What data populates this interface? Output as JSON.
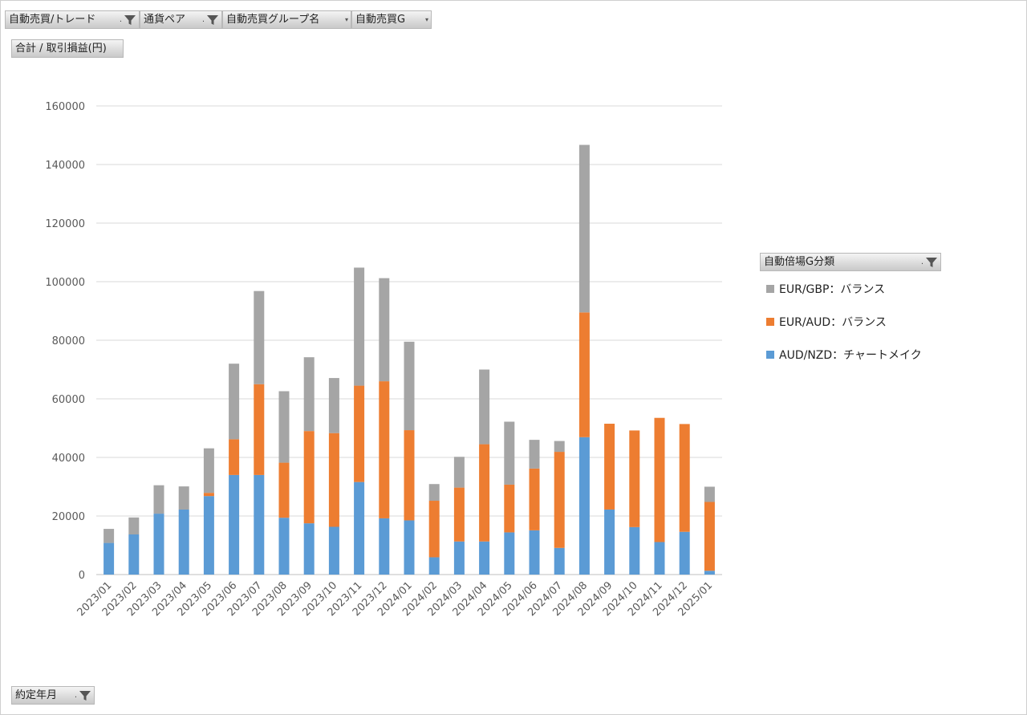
{
  "filters": {
    "top": [
      {
        "label": "自動売買/トレード",
        "marker": ".",
        "icon": "filter-icon"
      },
      {
        "label": "通貨ペア",
        "marker": ".",
        "icon": "filter-icon"
      },
      {
        "label": "自動売買グループ名",
        "marker": "",
        "icon": "dropdown-icon"
      },
      {
        "label": "自動売買G",
        "marker": "",
        "icon": "dropdown-icon"
      }
    ],
    "value_field": "合計 / 取引損益(円)",
    "axis_field": {
      "label": "約定年月",
      "marker": ".",
      "icon": "filter-icon"
    },
    "legend_field": {
      "label": "自動倍場G分類",
      "marker": ".",
      "icon": "filter-icon"
    }
  },
  "colors": {
    "gray": "#a5a5a5",
    "orange": "#ed7d31",
    "blue": "#5b9bd5"
  },
  "chart_data": {
    "type": "bar",
    "stacked": true,
    "title": "",
    "xlabel": "",
    "ylabel": "",
    "ylim": [
      0,
      160000
    ],
    "yticks": [
      "0",
      "20000",
      "40000",
      "60000",
      "80000",
      "100000",
      "120000",
      "140000",
      "160000"
    ],
    "grid": true,
    "legend_position": "right",
    "categories": [
      "2023/01",
      "2023/02",
      "2023/03",
      "2023/04",
      "2023/05",
      "2023/06",
      "2023/07",
      "2023/08",
      "2023/09",
      "2023/10",
      "2023/11",
      "2023/12",
      "2024/01",
      "2024/02",
      "2024/03",
      "2024/04",
      "2024/05",
      "2024/06",
      "2024/07",
      "2024/08",
      "2024/09",
      "2024/10",
      "2024/11",
      "2024/12",
      "2025/01"
    ],
    "series": [
      {
        "name": "AUD/NZD：チャートメイク",
        "color": "#5b9bd5",
        "values": [
          10800,
          13700,
          20800,
          22200,
          26800,
          34000,
          34000,
          19400,
          17500,
          16300,
          31600,
          19200,
          18500,
          5900,
          11300,
          11300,
          14400,
          15100,
          9100,
          46900,
          22200,
          16200,
          11100,
          14600,
          1300
        ]
      },
      {
        "name": "EUR/AUD：バランス",
        "color": "#ed7d31",
        "values": [
          0,
          0,
          0,
          0,
          1100,
          12200,
          31000,
          18800,
          31500,
          32000,
          32900,
          46800,
          30800,
          19300,
          18400,
          33200,
          16300,
          21100,
          32800,
          42600,
          29300,
          33000,
          42400,
          36800,
          23500
        ]
      },
      {
        "name": "EUR/GBP：バランス",
        "color": "#a5a5a5",
        "values": [
          4800,
          5800,
          9700,
          7900,
          15200,
          25800,
          31800,
          24400,
          25200,
          18800,
          40300,
          35200,
          30200,
          5700,
          10500,
          25500,
          21500,
          9800,
          3700,
          57200,
          0,
          0,
          0,
          0,
          5200
        ]
      }
    ],
    "legend_order": [
      "EUR/GBP：バランス",
      "EUR/AUD：バランス",
      "AUD/NZD：チャートメイク"
    ]
  }
}
